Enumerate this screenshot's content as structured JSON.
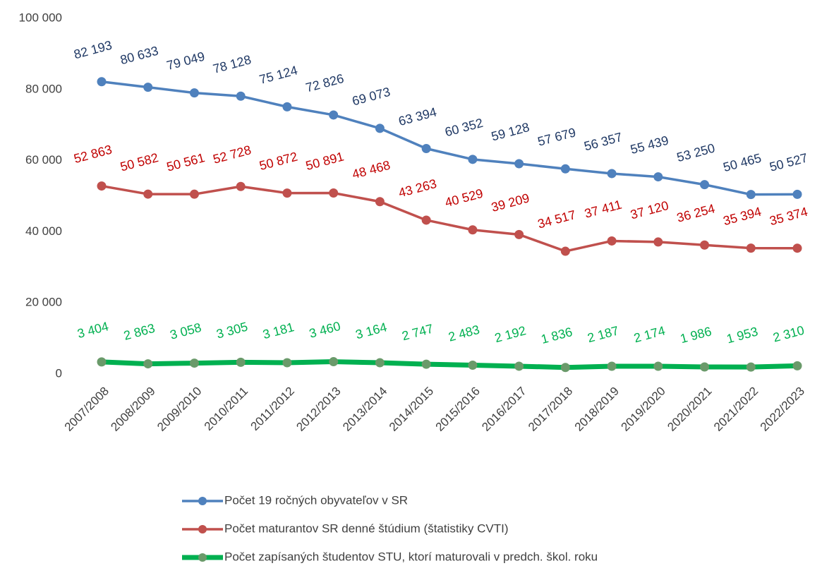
{
  "chart_data": {
    "type": "line",
    "categories": [
      "2007/2008",
      "2008/2009",
      "2009/2010",
      "2010/2011",
      "2011/2012",
      "2012/2013",
      "2013/2014",
      "2014/2015",
      "2015/2016",
      "2016/2017",
      "2017/2018",
      "2018/2019",
      "2019/2020",
      "2020/2021",
      "2021/2022",
      "2022/2023"
    ],
    "series": [
      {
        "name": "Počet 19 ročných obyvateľov v SR",
        "color": "#4f81bd",
        "label_color": "#1f3864",
        "marker_color": "#4f81bd",
        "values": [
          82193,
          80633,
          79049,
          78128,
          75124,
          72826,
          69073,
          63394,
          60352,
          59128,
          57679,
          56357,
          55439,
          53250,
          50465,
          50527
        ],
        "value_labels": [
          "82 193",
          "80 633",
          "79 049",
          "78 128",
          "75 124",
          "72 826",
          "69 073",
          "63 394",
          "60 352",
          "59 128",
          "57 679",
          "56 357",
          "55 439",
          "53 250",
          "50 465",
          "50 527"
        ]
      },
      {
        "name": "Počet maturantov SR denné štúdium (štatistiky CVTI)",
        "color": "#c0504d",
        "label_color": "#c00000",
        "marker_color": "#c0504d",
        "values": [
          52863,
          50582,
          50561,
          52728,
          50872,
          50891,
          48468,
          43263,
          40529,
          39209,
          34517,
          37411,
          37120,
          36254,
          35394,
          35374
        ],
        "value_labels": [
          "52 863",
          "50 582",
          "50 561",
          "52 728",
          "50 872",
          "50 891",
          "48 468",
          "43 263",
          "40 529",
          "39 209",
          "34 517",
          "37 411",
          "37 120",
          "36 254",
          "35 394",
          "35 374"
        ]
      },
      {
        "name": "Počet zapísaných študentov STU, ktorí maturovali v predch. škol. roku",
        "color": "#00b050",
        "label_color": "#00b050",
        "marker_color": "#6a9a6a",
        "values": [
          3404,
          2863,
          3058,
          3305,
          3181,
          3460,
          3164,
          2747,
          2483,
          2192,
          1836,
          2187,
          2174,
          1986,
          1953,
          2310
        ],
        "value_labels": [
          "3 404",
          "2 863",
          "3 058",
          "3 305",
          "3 181",
          "3 460",
          "3 164",
          "2 747",
          "2 483",
          "2 192",
          "1 836",
          "2 187",
          "2 174",
          "1 986",
          "1 953",
          "2 310"
        ]
      }
    ],
    "ylim": [
      0,
      100000
    ],
    "yticks": [
      {
        "value": 0,
        "label": "0"
      },
      {
        "value": 20000,
        "label": "20 000"
      },
      {
        "value": 40000,
        "label": "40 000"
      },
      {
        "value": 60000,
        "label": "60 000"
      },
      {
        "value": 80000,
        "label": "80 000"
      },
      {
        "value": 100000,
        "label": "100 000"
      }
    ],
    "grid": false,
    "legend": "bottom"
  }
}
